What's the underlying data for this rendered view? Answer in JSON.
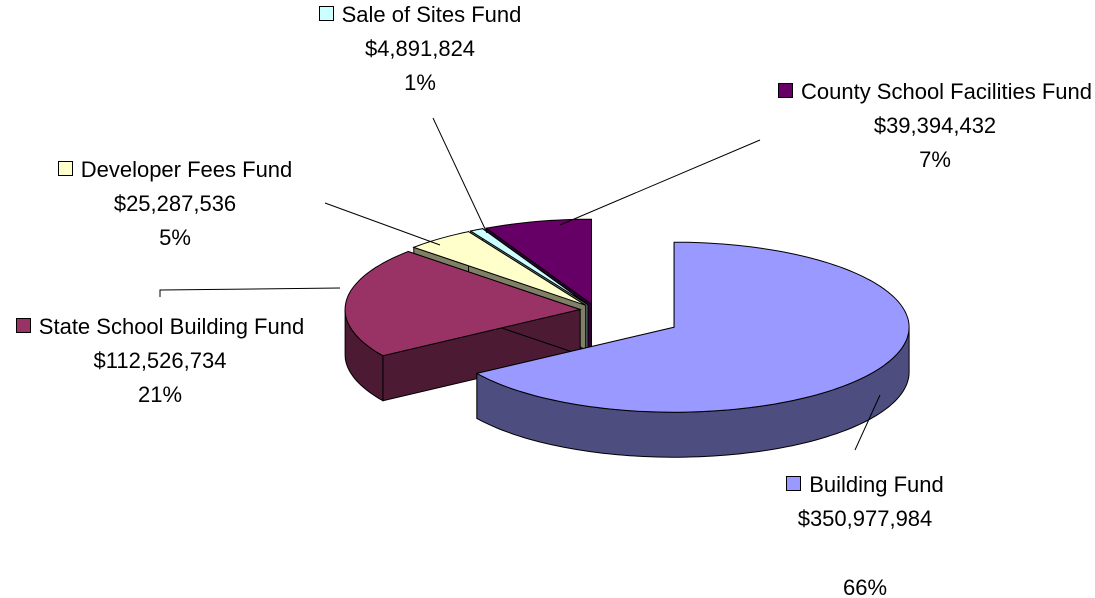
{
  "chart_data": {
    "type": "pie3d",
    "categories": [
      "Building Fund",
      "State School Building Fund",
      "Developer Fees Fund",
      "Sale of Sites Fund",
      "County School Facilities Fund"
    ],
    "values": [
      350977984,
      112526734,
      25287536,
      4891824,
      39394432
    ],
    "value_labels": [
      "$350,977,984",
      "$112,526,734",
      "$25,287,536",
      "$4,891,824",
      "$39,394,432"
    ],
    "percents": [
      66,
      21,
      5,
      1,
      7
    ],
    "percent_labels": [
      "66%",
      "21%",
      "5%",
      "1%",
      "7%"
    ],
    "colors": [
      "#9999ff",
      "#993366",
      "#ffffcc",
      "#ccffff",
      "#660066"
    ]
  }
}
